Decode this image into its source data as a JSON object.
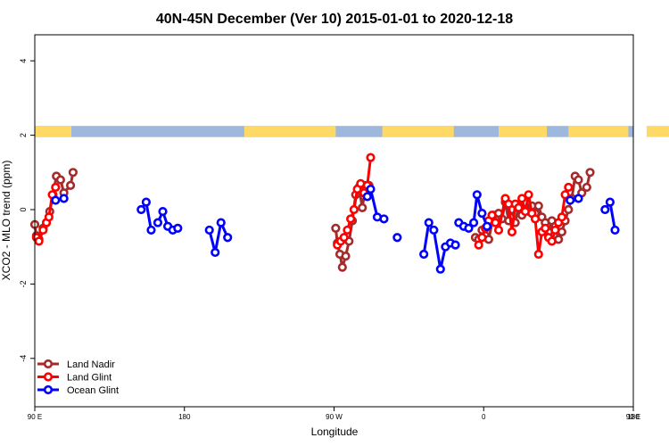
{
  "chart_data": {
    "type": "line",
    "title": "40N-45N December (Ver 10)   2015-01-01 to 2020-12-18",
    "xlabel": "Longitude",
    "ylabel": "XCO2 - MLO trend (ppm)",
    "xlim": [
      90,
      450
    ],
    "ylim": [
      -5.3,
      4.7
    ],
    "xticks": [
      {
        "value": 90,
        "label": "90 E"
      },
      {
        "value": 180,
        "label": "180"
      },
      {
        "value": 270,
        "label": "90 W"
      },
      {
        "value": 360,
        "label": "0"
      },
      {
        "value": 450,
        "label": "90 E"
      },
      {
        "value": 540,
        "label": "180"
      }
    ],
    "yticks": [
      {
        "value": -4,
        "label": "-4"
      },
      {
        "value": -2,
        "label": "-2"
      },
      {
        "value": 0,
        "label": "0"
      },
      {
        "value": 2,
        "label": "2"
      },
      {
        "value": 4,
        "label": "4"
      }
    ],
    "legend": {
      "position": "bottom-left"
    },
    "land_ocean_strip": {
      "y_range": [
        1.95,
        2.25
      ],
      "land_color": "#FFD966",
      "ocean_color": "#9DB8DC",
      "land_segments": [
        [
          90,
          112
        ],
        [
          216,
          271
        ],
        [
          299,
          342
        ],
        [
          369,
          398
        ],
        [
          411,
          447
        ],
        [
          458,
          492
        ]
      ]
    },
    "series": [
      {
        "name": "Land Nadir",
        "color": "#A52A2A",
        "segments": [
          [
            [
              90,
              -0.4
            ],
            [
              91,
              -0.7
            ],
            [
              92.5,
              -0.8
            ],
            [
              95,
              -0.5
            ],
            [
              97,
              -0.35
            ],
            [
              99,
              -0.05
            ],
            [
              101,
              0.4
            ],
            [
              103,
              0.9
            ],
            [
              105.5,
              0.8
            ],
            [
              107.5,
              0.45
            ],
            [
              111.5,
              0.65
            ],
            [
              113,
              1.0
            ]
          ],
          [
            [
              271,
              -0.5
            ],
            [
              272,
              -0.9
            ],
            [
              273.5,
              -1.2
            ],
            [
              275,
              -1.55
            ],
            [
              277,
              -1.25
            ],
            [
              279,
              -0.85
            ],
            [
              281,
              -0.3
            ],
            [
              283,
              0.4
            ],
            [
              285,
              0.6
            ],
            [
              287,
              0.05
            ],
            [
              289,
              0.65
            ],
            [
              291,
              0.65
            ]
          ],
          [
            [
              355,
              -0.75
            ],
            [
              357,
              -0.8
            ],
            [
              359,
              -0.55
            ],
            [
              361,
              -0.7
            ],
            [
              363,
              -0.8
            ],
            [
              366,
              -0.15
            ],
            [
              369,
              -0.1
            ],
            [
              371,
              -0.25
            ],
            [
              373,
              0.2
            ],
            [
              375,
              -0.3
            ],
            [
              377,
              0.0
            ],
            [
              379,
              -0.35
            ],
            [
              381,
              0.1
            ],
            [
              383,
              -0.15
            ],
            [
              385,
              0.0
            ],
            [
              387,
              -0.05
            ],
            [
              389,
              0.1
            ],
            [
              391,
              -0.1
            ],
            [
              393,
              0.1
            ],
            [
              395,
              -0.2
            ],
            [
              397,
              -0.35
            ],
            [
              399,
              -0.6
            ],
            [
              401,
              -0.3
            ],
            [
              403,
              -0.45
            ],
            [
              405,
              -0.8
            ],
            [
              407,
              -0.6
            ],
            [
              409,
              -0.3
            ],
            [
              411,
              0.0
            ],
            [
              413,
              0.3
            ],
            [
              415,
              0.9
            ],
            [
              417,
              0.8
            ],
            [
              419,
              0.45
            ],
            [
              422,
              0.6
            ],
            [
              424,
              1.0
            ]
          ]
        ]
      },
      {
        "name": "Land Glint",
        "color": "#FF0000",
        "segments": [
          [
            [
              91,
              -0.75
            ],
            [
              92.5,
              -0.85
            ],
            [
              95,
              -0.55
            ],
            [
              97,
              -0.35
            ],
            [
              98.5,
              -0.2
            ],
            [
              100.5,
              0.4
            ],
            [
              102.5,
              0.6
            ]
          ],
          [
            [
              272,
              -0.95
            ],
            [
              274,
              -0.85
            ],
            [
              276,
              -0.75
            ],
            [
              278,
              -0.55
            ],
            [
              280,
              -0.25
            ],
            [
              282,
              0.0
            ],
            [
              284,
              0.55
            ],
            [
              286,
              0.7
            ],
            [
              288,
              0.45
            ],
            [
              290,
              0.65
            ],
            [
              292,
              1.4
            ]
          ],
          [
            [
              357,
              -0.95
            ],
            [
              359,
              -0.75
            ],
            [
              361,
              -0.5
            ],
            [
              363,
              -0.3
            ],
            [
              365,
              -0.15
            ],
            [
              367,
              -0.35
            ],
            [
              369,
              -0.55
            ],
            [
              373,
              0.3
            ],
            [
              375,
              0.15
            ],
            [
              377,
              -0.6
            ],
            [
              379,
              0.15
            ],
            [
              381,
              0.05
            ],
            [
              383,
              0.3
            ],
            [
              385,
              -0.05
            ],
            [
              387,
              0.4
            ],
            [
              389,
              -0.1
            ],
            [
              391,
              -0.25
            ],
            [
              393,
              -1.2
            ],
            [
              395,
              -0.6
            ],
            [
              397,
              -0.5
            ],
            [
              399,
              -0.75
            ],
            [
              401,
              -0.85
            ],
            [
              403,
              -0.55
            ],
            [
              405,
              -0.35
            ],
            [
              407,
              -0.2
            ],
            [
              409,
              0.4
            ],
            [
              411,
              0.6
            ]
          ]
        ]
      },
      {
        "name": "Ocean Glint",
        "color": "#0000FF",
        "segments": [
          [
            [
              102.5,
              0.25
            ],
            [
              107.5,
              0.3
            ]
          ],
          [
            [
              154,
              0.0
            ],
            [
              157,
              0.2
            ],
            [
              160,
              -0.55
            ]
          ],
          [
            [
              164,
              -0.35
            ],
            [
              167,
              -0.05
            ],
            [
              170,
              -0.45
            ],
            [
              173,
              -0.55
            ],
            [
              176,
              -0.5
            ]
          ],
          [
            [
              195,
              -0.55
            ],
            [
              198.5,
              -1.15
            ],
            [
              202,
              -0.35
            ],
            [
              206,
              -0.75
            ]
          ],
          [
            [
              290,
              0.35
            ],
            [
              292,
              0.55
            ],
            [
              296,
              -0.2
            ],
            [
              300,
              -0.25
            ]
          ],
          [
            [
              308,
              -0.75
            ]
          ],
          [
            [
              324,
              -1.2
            ],
            [
              327,
              -0.35
            ],
            [
              330,
              -0.55
            ],
            [
              334,
              -1.6
            ],
            [
              337,
              -1.0
            ],
            [
              340,
              -0.9
            ],
            [
              343,
              -0.95
            ]
          ],
          [
            [
              345,
              -0.35
            ],
            [
              348,
              -0.45
            ],
            [
              351,
              -0.5
            ],
            [
              354,
              -0.35
            ],
            [
              356,
              0.4
            ],
            [
              359,
              -0.1
            ],
            [
              362,
              -0.45
            ]
          ],
          [
            [
              412,
              0.25
            ],
            [
              417,
              0.3
            ]
          ],
          [
            [
              433,
              0.0
            ],
            [
              436,
              0.2
            ],
            [
              439,
              -0.55
            ]
          ]
        ]
      }
    ]
  }
}
